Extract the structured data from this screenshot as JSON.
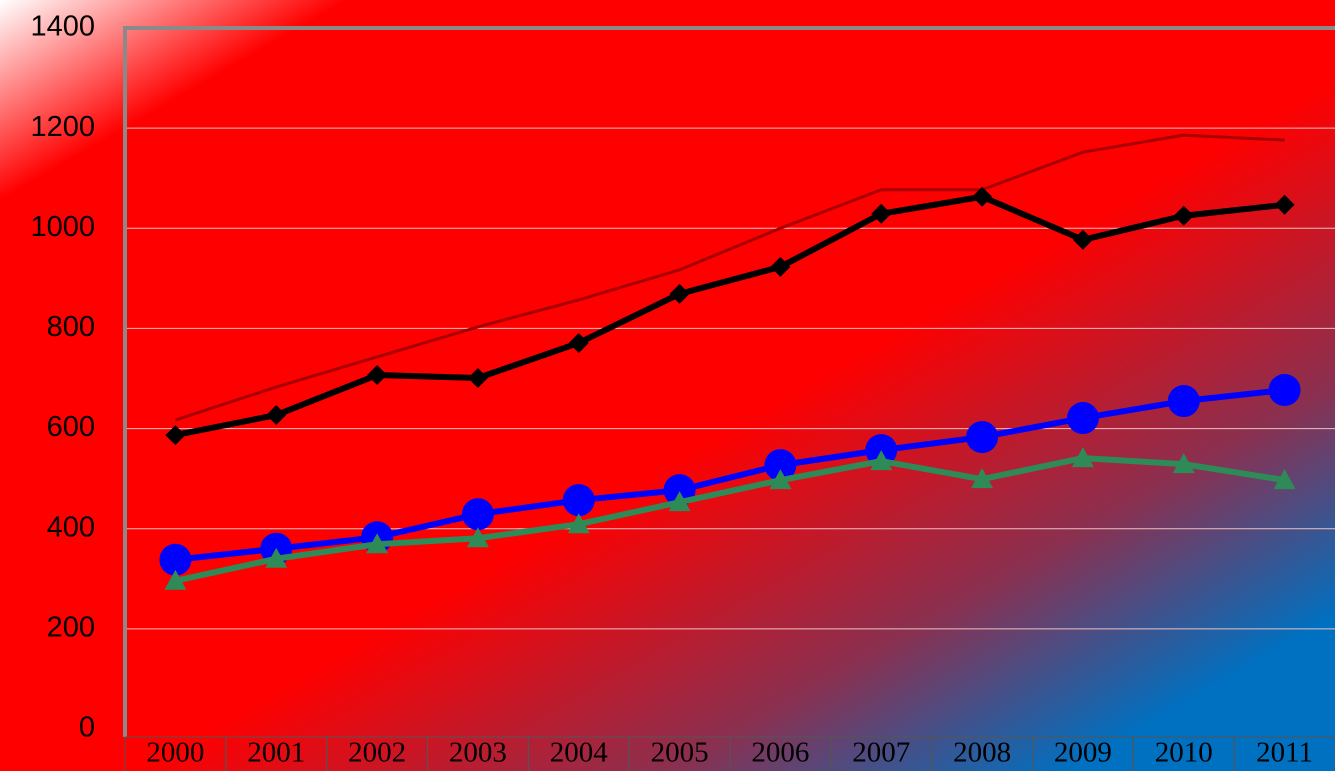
{
  "chart_data": {
    "type": "line",
    "categories": [
      "2000",
      "2001",
      "2002",
      "2003",
      "2004",
      "2005",
      "2006",
      "2007",
      "2008",
      "2009",
      "2010",
      "2011"
    ],
    "series": [
      {
        "color": "#a80000",
        "marker": "none",
        "values": [
          617,
          683,
          743,
          803,
          857,
          917,
          1000,
          1077,
          1077,
          1152,
          1186,
          1176
        ]
      },
      {
        "color": "#000000",
        "marker": "diamond",
        "values": [
          587,
          627,
          707,
          701,
          771,
          869,
          923,
          1029,
          1063,
          977,
          1025,
          1047
        ]
      },
      {
        "color": "#0000ff",
        "marker": "circle",
        "values": [
          338,
          360,
          383,
          429,
          457,
          477,
          527,
          557,
          583,
          621,
          655,
          677
        ]
      },
      {
        "color": "#2e8b57",
        "marker": "triangle",
        "values": [
          296,
          340,
          369,
          381,
          409,
          453,
          497,
          535,
          499,
          541,
          529,
          497
        ]
      }
    ],
    "ylim": [
      0,
      1400
    ],
    "yticks": [
      0,
      200,
      400,
      600,
      800,
      1000,
      1200,
      1400
    ],
    "grid": true
  }
}
